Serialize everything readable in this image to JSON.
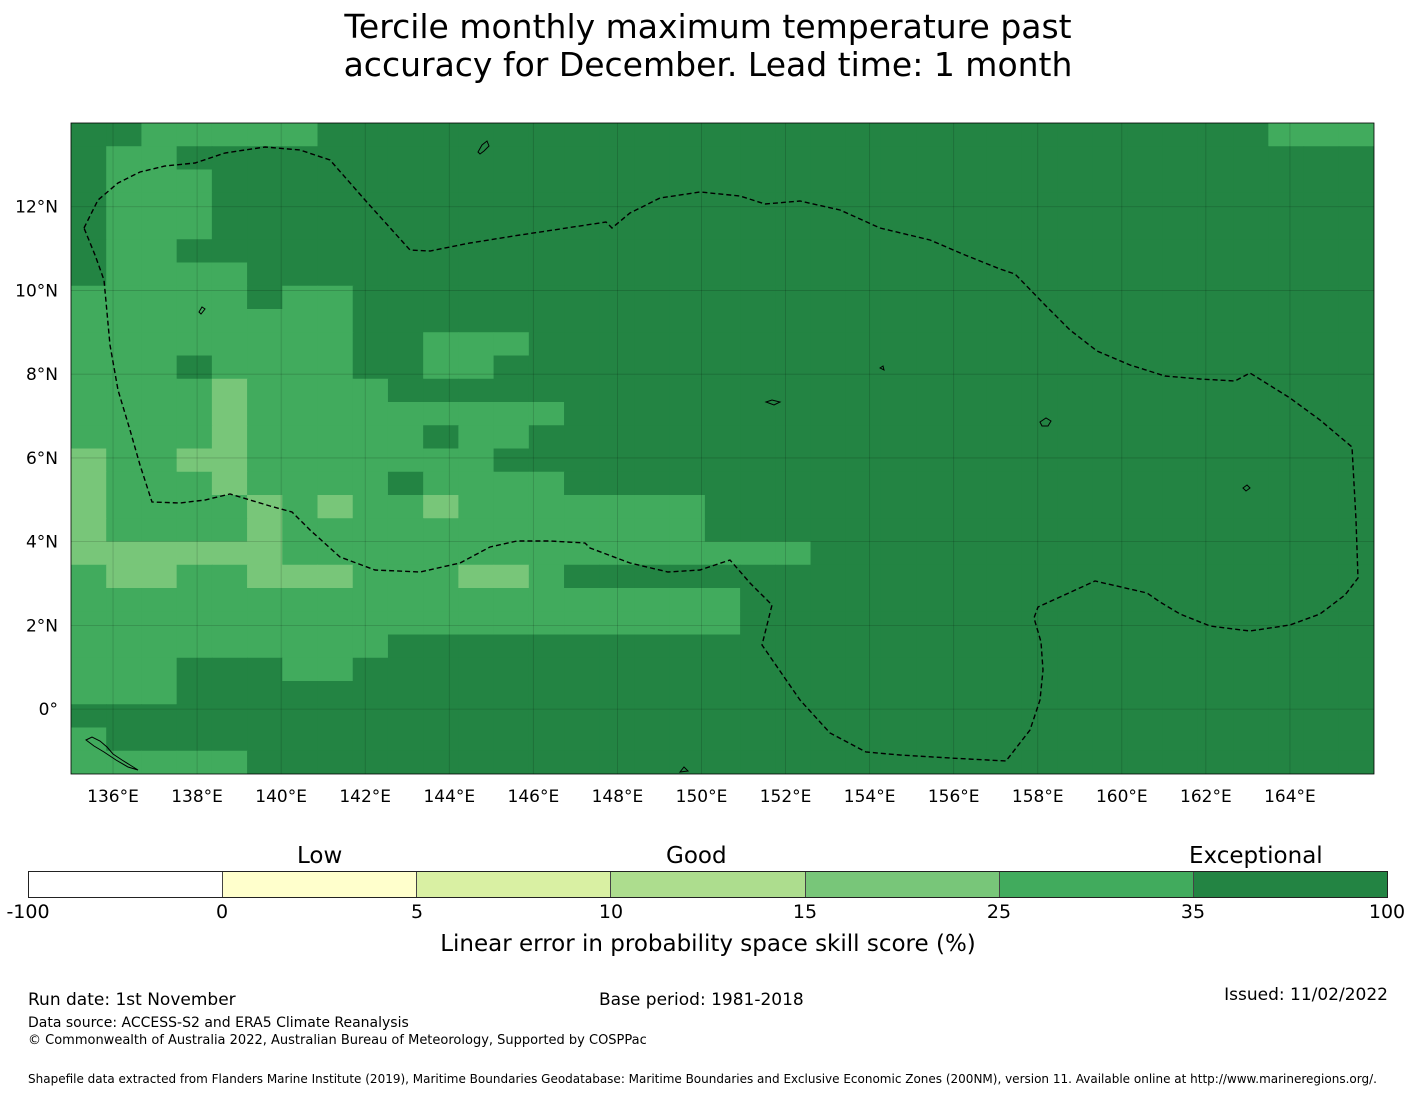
{
  "title": {
    "line1": "Tercile monthly maximum temperature past",
    "line2": "accuracy for December. Lead time: 1 month"
  },
  "map": {
    "x_tick_labels": [
      "136°E",
      "138°E",
      "140°E",
      "142°E",
      "144°E",
      "146°E",
      "148°E",
      "150°E",
      "152°E",
      "154°E",
      "156°E",
      "158°E",
      "160°E",
      "162°E",
      "164°E"
    ],
    "y_tick_labels": [
      "12°N",
      "10°N",
      "8°N",
      "6°N",
      "4°N",
      "2°N",
      "0°"
    ],
    "lon_range": [
      135.0,
      166.0
    ],
    "lat_range": [
      -1.55,
      14.0
    ],
    "legend": [
      "skill >35% (Exceptional)",
      "skill 25-35%",
      "skill 15-25%"
    ],
    "grid_cols": 37,
    "grid_rows": 28,
    "skill_class_grid": [
      "3322222333333333333333333333333333222",
      "3223333333333333333333333333333333333",
      "3222333333333333333333333333333333333",
      "3222333333333333333333333333333333333",
      "3222333333333333333333333333333333333",
      "3223333333333333333333333333333333333",
      "3222233333333333333333333333333333333",
      "2222232233333333333333333333333333333",
      "2222222233333333333333333333333333333",
      "2222222233222333333333333333333333333",
      "2223222233223333333333333333333333333",
      "2222122223333333333333333333333333333",
      "2222122222222233333333333333333333333",
      "2222122222322333333333333333333333333",
      "1221122222223333333333333333333333333",
      "1222122223222233333333333333333333333",
      "1222212122122222223333333333333333333",
      "1222212222222222223333333333333333333",
      "1111112222222222222223333333333333333",
      "2112211122211233333333333333333333333",
      "2222222222222222222333333333333333333",
      "2222222222222222222333333333333333333",
      "2222222223333333333333333333333333333",
      "2223332233333333333333333333333333333",
      "2223333333333333333333333333333333333",
      "3333333333333333333333333333333333333",
      "2333333333333333333333333333333333333",
      "2222233333333333333333333333333333333"
    ],
    "skill_class_colors": [
      "#d9f0a3",
      "#78c679",
      "#41ab5d",
      "#238443"
    ]
  },
  "colorbar": {
    "category_labels": [
      "Low",
      "Good",
      "Exceptional"
    ],
    "tick_labels": [
      "-100",
      "0",
      "5",
      "10",
      "15",
      "25",
      "35",
      "100"
    ],
    "colors": [
      "#ffffff",
      "#ffffcc",
      "#d9f0a3",
      "#addd8e",
      "#78c679",
      "#41ab5d",
      "#238443"
    ],
    "title": "Linear error in probability space skill score (%)"
  },
  "footer": {
    "run_date": "Run date: 1st November",
    "base_period": "Base period: 1981-2018",
    "issued": "Issued: 11/02/2022",
    "data_source": "Data source: ACCESS-S2 and ERA5 Climate Reanalysis",
    "copyright": "© Commonwealth of Australia 2022, Australian Bureau of Meteorology, Supported by COSPPac",
    "shapefile": "Shapefile data extracted from Flanders Marine Institute (2019), Maritime Boundaries Geodatabase: Maritime Boundaries and Exclusive Economic Zones (200NM), version 11. Available online at http://www.marineregions.org/."
  }
}
